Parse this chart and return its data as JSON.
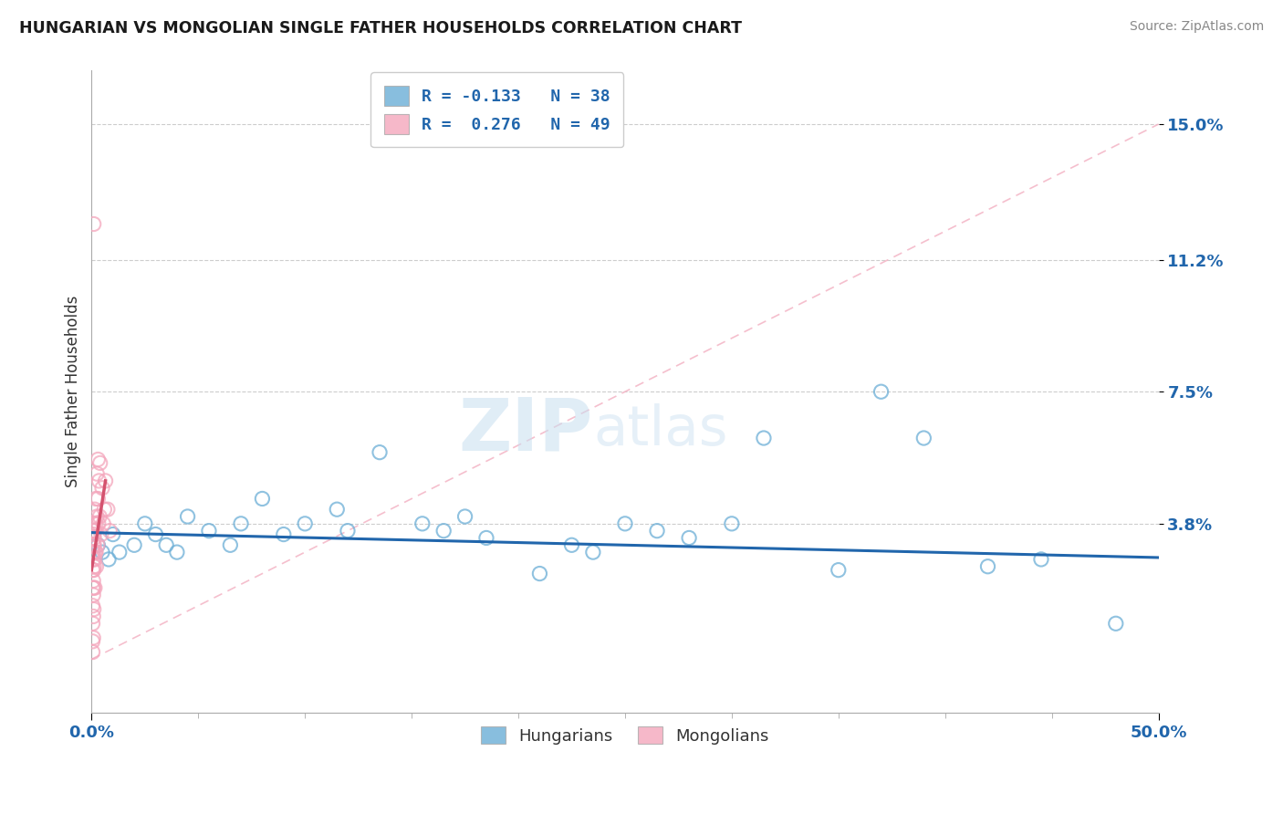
{
  "title": "HUNGARIAN VS MONGOLIAN SINGLE FATHER HOUSEHOLDS CORRELATION CHART",
  "source": "Source: ZipAtlas.com",
  "xlim": [
    0,
    50
  ],
  "ylim": [
    -1.5,
    16.5
  ],
  "ytick_vals": [
    3.8,
    7.5,
    11.2,
    15.0
  ],
  "xtick_vals": [
    0,
    50
  ],
  "ylabel": "Single Father Households",
  "legend_blue_label": "Hungarians",
  "legend_pink_label": "Mongolians",
  "R_blue": -0.133,
  "N_blue": 38,
  "R_pink": 0.276,
  "N_pink": 49,
  "blue_color": "#6baed6",
  "pink_color": "#f4a6bc",
  "blue_line_color": "#2166ac",
  "pink_line_color": "#d4526e",
  "diag_line_color": "#f4b8c8",
  "blue_scatter": [
    [
      0.3,
      3.2
    ],
    [
      0.5,
      3.0
    ],
    [
      0.8,
      2.8
    ],
    [
      1.0,
      3.5
    ],
    [
      1.3,
      3.0
    ],
    [
      2.0,
      3.2
    ],
    [
      2.5,
      3.8
    ],
    [
      3.0,
      3.5
    ],
    [
      3.5,
      3.2
    ],
    [
      4.0,
      3.0
    ],
    [
      4.5,
      4.0
    ],
    [
      5.5,
      3.6
    ],
    [
      6.5,
      3.2
    ],
    [
      7.0,
      3.8
    ],
    [
      8.0,
      4.5
    ],
    [
      9.0,
      3.5
    ],
    [
      10.0,
      3.8
    ],
    [
      11.5,
      4.2
    ],
    [
      12.0,
      3.6
    ],
    [
      13.5,
      5.8
    ],
    [
      15.5,
      3.8
    ],
    [
      16.5,
      3.6
    ],
    [
      17.5,
      4.0
    ],
    [
      18.5,
      3.4
    ],
    [
      21.0,
      2.4
    ],
    [
      22.5,
      3.2
    ],
    [
      23.5,
      3.0
    ],
    [
      25.0,
      3.8
    ],
    [
      26.5,
      3.6
    ],
    [
      28.0,
      3.4
    ],
    [
      30.0,
      3.8
    ],
    [
      31.5,
      6.2
    ],
    [
      35.0,
      2.5
    ],
    [
      37.0,
      7.5
    ],
    [
      39.0,
      6.2
    ],
    [
      42.0,
      2.6
    ],
    [
      44.5,
      2.8
    ],
    [
      48.0,
      1.0
    ]
  ],
  "pink_scatter": [
    [
      0.05,
      3.0
    ],
    [
      0.05,
      2.5
    ],
    [
      0.05,
      2.0
    ],
    [
      0.05,
      1.5
    ],
    [
      0.05,
      1.0
    ],
    [
      0.05,
      0.5
    ],
    [
      0.05,
      0.2
    ],
    [
      0.08,
      3.2
    ],
    [
      0.08,
      2.8
    ],
    [
      0.08,
      2.2
    ],
    [
      0.08,
      1.8
    ],
    [
      0.08,
      1.2
    ],
    [
      0.08,
      0.6
    ],
    [
      0.1,
      3.5
    ],
    [
      0.1,
      3.0
    ],
    [
      0.1,
      2.5
    ],
    [
      0.1,
      2.0
    ],
    [
      0.1,
      1.4
    ],
    [
      0.12,
      3.8
    ],
    [
      0.12,
      3.2
    ],
    [
      0.12,
      2.6
    ],
    [
      0.15,
      4.2
    ],
    [
      0.15,
      3.6
    ],
    [
      0.15,
      2.8
    ],
    [
      0.15,
      2.0
    ],
    [
      0.2,
      4.5
    ],
    [
      0.2,
      3.8
    ],
    [
      0.2,
      3.0
    ],
    [
      0.25,
      5.2
    ],
    [
      0.25,
      4.0
    ],
    [
      0.3,
      5.6
    ],
    [
      0.3,
      4.5
    ],
    [
      0.35,
      5.0
    ],
    [
      0.4,
      5.5
    ],
    [
      0.5,
      4.8
    ],
    [
      0.6,
      4.2
    ],
    [
      0.1,
      12.2
    ],
    [
      0.08,
      3.6
    ],
    [
      0.12,
      3.4
    ],
    [
      0.18,
      3.0
    ],
    [
      0.22,
      2.6
    ],
    [
      0.28,
      3.2
    ],
    [
      0.32,
      3.8
    ],
    [
      0.38,
      4.0
    ],
    [
      0.45,
      3.5
    ],
    [
      0.55,
      3.8
    ],
    [
      0.65,
      5.0
    ],
    [
      0.75,
      4.2
    ],
    [
      0.85,
      3.6
    ]
  ],
  "watermark_zip": "ZIP",
  "watermark_atlas": "atlas",
  "background_color": "#ffffff",
  "grid_color": "#c8c8c8"
}
